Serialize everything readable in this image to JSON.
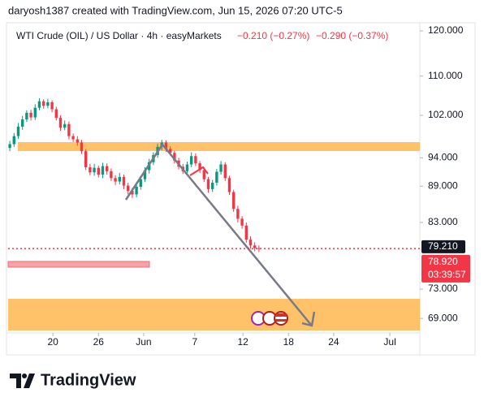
{
  "header": "daryosh1387 created with TradingView.com, Jun 15, 2026 07:20 UTC-5",
  "logo": "TradingView",
  "chart_data": {
    "type": "candlestick",
    "title": "WTI Crude (OIL) / US Dollar · 4h · easyMarkets",
    "changes": [
      "−0.210 (−0.27%)",
      "−0.290 (−0.37%)"
    ],
    "log_scale": true,
    "up_color": "#089981",
    "down_color": "#f23645",
    "open": [
      95.8,
      96.5,
      98.0,
      99.8,
      101.2,
      102.5,
      101.6,
      103.5,
      104.8,
      103.9,
      104.6,
      103.2,
      101.5,
      99.6,
      100.3,
      98.0,
      97.4,
      96.8,
      95.2,
      92.3,
      91.4,
      92.2,
      91.0,
      92.5,
      91.6,
      90.4,
      89.8,
      90.6,
      89.1,
      88.2,
      87.6,
      88.9,
      90.2,
      91.8,
      93.2,
      94.5,
      96.0,
      96.8,
      95.6,
      94.9,
      93.5,
      92.4,
      91.6,
      92.8,
      94.3,
      93.0,
      91.8,
      90.2,
      88.5,
      89.6,
      91.5,
      92.8,
      90.4,
      88.0,
      85.2,
      83.6,
      82.5,
      80.3,
      79.4,
      79.0
    ],
    "high": [
      97.1,
      98.6,
      100.5,
      101.9,
      103.0,
      103.1,
      104.2,
      105.4,
      105.2,
      105.3,
      105.0,
      103.7,
      102.0,
      101.0,
      100.8,
      98.5,
      98.0,
      97.3,
      95.6,
      92.9,
      92.9,
      92.6,
      93.1,
      93.0,
      92.1,
      90.9,
      91.3,
      91.0,
      89.6,
      88.7,
      89.4,
      90.7,
      92.3,
      93.8,
      95.0,
      96.6,
      97.3,
      97.2,
      96.1,
      95.3,
      94.0,
      92.9,
      93.3,
      95.0,
      94.8,
      93.4,
      92.3,
      90.6,
      90.1,
      92.0,
      93.4,
      93.2,
      90.8,
      88.4,
      85.7,
      84.0,
      83.0,
      80.8,
      79.9,
      79.4
    ],
    "low": [
      95.2,
      96.0,
      97.5,
      99.2,
      100.7,
      101.0,
      101.1,
      103.0,
      103.3,
      103.4,
      102.6,
      101.0,
      99.0,
      99.1,
      97.4,
      96.9,
      96.2,
      94.7,
      91.8,
      90.9,
      90.8,
      90.5,
      90.4,
      91.0,
      89.9,
      89.2,
      89.3,
      88.5,
      87.6,
      87.0,
      87.1,
      88.4,
      89.7,
      91.2,
      92.7,
      94.0,
      95.4,
      95.1,
      94.4,
      93.0,
      91.9,
      91.1,
      91.0,
      92.3,
      92.5,
      91.3,
      89.7,
      87.9,
      88.0,
      89.1,
      91.0,
      89.9,
      87.5,
      84.7,
      83.0,
      82.0,
      79.8,
      78.9,
      78.5,
      78.4
    ],
    "close": [
      96.5,
      98.0,
      99.8,
      101.2,
      102.5,
      101.6,
      103.5,
      104.8,
      103.9,
      104.6,
      103.2,
      101.5,
      99.6,
      100.3,
      98.0,
      97.4,
      96.8,
      95.2,
      92.3,
      91.4,
      92.2,
      91.0,
      92.5,
      91.6,
      90.4,
      89.8,
      90.6,
      89.1,
      88.2,
      87.6,
      88.9,
      90.2,
      91.8,
      93.2,
      94.5,
      96.0,
      96.8,
      95.6,
      94.9,
      93.5,
      92.4,
      91.6,
      92.8,
      94.3,
      93.0,
      91.8,
      90.2,
      88.5,
      89.6,
      91.5,
      92.8,
      90.4,
      88.0,
      85.2,
      83.6,
      82.5,
      80.3,
      79.4,
      79.0,
      78.92
    ],
    "xlim": [
      -0.4,
      97.1
    ],
    "xticks": [
      {
        "value": 10.2,
        "label": "20"
      },
      {
        "value": 21,
        "label": "26"
      },
      {
        "value": 31.7,
        "label": "Jun"
      },
      {
        "value": 43.8,
        "label": "7"
      },
      {
        "value": 55.2,
        "label": "12"
      },
      {
        "value": 66,
        "label": "18"
      },
      {
        "value": 76.7,
        "label": "24"
      },
      {
        "value": 90,
        "label": "Jul"
      }
    ],
    "ylim": [
      67.1,
      121.9
    ],
    "yticks": [
      {
        "value": 120,
        "label": "120.000"
      },
      {
        "value": 110,
        "label": "110.000"
      },
      {
        "value": 102,
        "label": "102.000"
      },
      {
        "value": 94,
        "label": "94.000"
      },
      {
        "value": 89,
        "label": "89.000"
      },
      {
        "value": 83,
        "label": "83.000"
      },
      {
        "value": 73,
        "label": "73.000"
      },
      {
        "value": 69,
        "label": "69.000"
      }
    ],
    "price_line": {
      "value": 79.21,
      "label": "79.210"
    },
    "last_price": {
      "value": 78.92,
      "label": "78.920",
      "countdown": "03:39:57"
    }
  }
}
